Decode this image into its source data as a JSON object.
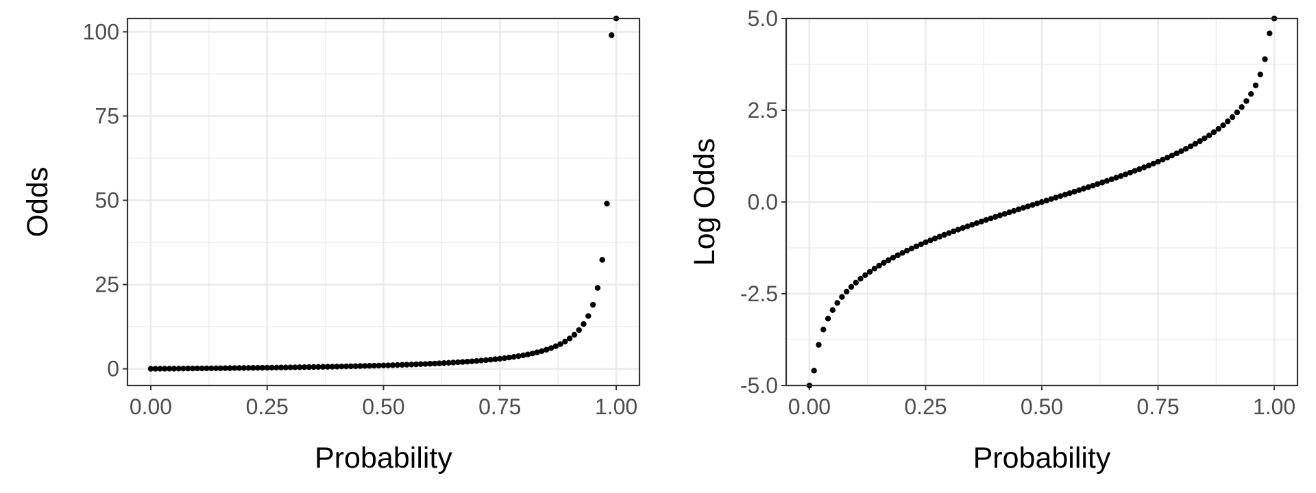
{
  "chart_data": [
    {
      "type": "scatter",
      "title": "",
      "xlabel": "Probability",
      "ylabel": "Odds",
      "xlim": [
        -0.05,
        1.05
      ],
      "ylim": [
        -4.95,
        103.95
      ],
      "xticks": [
        0,
        0.25,
        0.5,
        0.75,
        1
      ],
      "xtick_labels": [
        "0.00",
        "0.25",
        "0.50",
        "0.75",
        "1.00"
      ],
      "yticks": [
        0,
        25,
        50,
        75,
        100
      ],
      "ytick_labels": [
        "0",
        "25",
        "50",
        "75",
        "100"
      ],
      "grid": true,
      "point_color": "#000000",
      "x": [
        0,
        0.01,
        0.02,
        0.03,
        0.04,
        0.05,
        0.06,
        0.07,
        0.08,
        0.09,
        0.1,
        0.11,
        0.12,
        0.13,
        0.14,
        0.15,
        0.16,
        0.17,
        0.18,
        0.19,
        0.2,
        0.21,
        0.22,
        0.23,
        0.24,
        0.25,
        0.26,
        0.27,
        0.28,
        0.29,
        0.3,
        0.31,
        0.32,
        0.33,
        0.34,
        0.35,
        0.36,
        0.37,
        0.38,
        0.39,
        0.4,
        0.41,
        0.42,
        0.43,
        0.44,
        0.45,
        0.46,
        0.47,
        0.48,
        0.49,
        0.5,
        0.51,
        0.52,
        0.53,
        0.54,
        0.55,
        0.56,
        0.57,
        0.58,
        0.59,
        0.6,
        0.61,
        0.62,
        0.63,
        0.64,
        0.65,
        0.66,
        0.67,
        0.68,
        0.69,
        0.7,
        0.71,
        0.72,
        0.73,
        0.74,
        0.75,
        0.76,
        0.77,
        0.78,
        0.79,
        0.8,
        0.81,
        0.82,
        0.83,
        0.84,
        0.85,
        0.86,
        0.87,
        0.88,
        0.89,
        0.9,
        0.91,
        0.92,
        0.93,
        0.94,
        0.95,
        0.96,
        0.97,
        0.98,
        0.99,
        1
      ],
      "y": [
        0,
        0.0101,
        0.0204,
        0.0309,
        0.0417,
        0.0526,
        0.0638,
        0.0753,
        0.087,
        0.0989,
        0.1111,
        0.1236,
        0.1364,
        0.1494,
        0.1628,
        0.1765,
        0.1905,
        0.2048,
        0.2195,
        0.2346,
        0.25,
        0.2658,
        0.2821,
        0.2987,
        0.3158,
        0.3333,
        0.3514,
        0.3699,
        0.3889,
        0.4085,
        0.4286,
        0.4493,
        0.4706,
        0.4925,
        0.5152,
        0.5385,
        0.5625,
        0.5873,
        0.6129,
        0.6393,
        0.6667,
        0.6949,
        0.7241,
        0.7544,
        0.7857,
        0.8182,
        0.8519,
        0.8868,
        0.9231,
        0.9608,
        1,
        1.0408,
        1.0833,
        1.1277,
        1.1739,
        1.2222,
        1.2727,
        1.3256,
        1.381,
        1.439,
        1.5,
        1.5641,
        1.6316,
        1.7027,
        1.7778,
        1.8571,
        1.9412,
        2.0303,
        2.125,
        2.2258,
        2.3333,
        2.4483,
        2.5714,
        2.7037,
        2.8462,
        3,
        3.1667,
        3.3478,
        3.5455,
        3.7619,
        4,
        4.2632,
        4.5556,
        4.8824,
        5.25,
        5.6667,
        6.1429,
        6.6923,
        7.3333,
        8.0909,
        9,
        10.1111,
        11.5,
        13.2857,
        15.6667,
        19,
        24,
        32.3333,
        49,
        99,
        "Inf"
      ]
    },
    {
      "type": "scatter",
      "title": "",
      "xlabel": "Probability",
      "ylabel": "Log Odds",
      "xlim": [
        -0.05,
        1.05
      ],
      "ylim": [
        -5.0,
        5.0
      ],
      "xticks": [
        0,
        0.25,
        0.5,
        0.75,
        1
      ],
      "xtick_labels": [
        "0.00",
        "0.25",
        "0.50",
        "0.75",
        "1.00"
      ],
      "yticks": [
        -5,
        -2.5,
        0,
        2.5,
        5
      ],
      "ytick_labels": [
        "-5.0",
        "-2.5",
        "0.0",
        "2.5",
        "5.0"
      ],
      "grid": true,
      "point_color": "#000000",
      "x": [
        0,
        0.01,
        0.02,
        0.03,
        0.04,
        0.05,
        0.06,
        0.07,
        0.08,
        0.09,
        0.1,
        0.11,
        0.12,
        0.13,
        0.14,
        0.15,
        0.16,
        0.17,
        0.18,
        0.19,
        0.2,
        0.21,
        0.22,
        0.23,
        0.24,
        0.25,
        0.26,
        0.27,
        0.28,
        0.29,
        0.3,
        0.31,
        0.32,
        0.33,
        0.34,
        0.35,
        0.36,
        0.37,
        0.38,
        0.39,
        0.4,
        0.41,
        0.42,
        0.43,
        0.44,
        0.45,
        0.46,
        0.47,
        0.48,
        0.49,
        0.5,
        0.51,
        0.52,
        0.53,
        0.54,
        0.55,
        0.56,
        0.57,
        0.58,
        0.59,
        0.6,
        0.61,
        0.62,
        0.63,
        0.64,
        0.65,
        0.66,
        0.67,
        0.68,
        0.69,
        0.7,
        0.71,
        0.72,
        0.73,
        0.74,
        0.75,
        0.76,
        0.77,
        0.78,
        0.79,
        0.8,
        0.81,
        0.82,
        0.83,
        0.84,
        0.85,
        0.86,
        0.87,
        0.88,
        0.89,
        0.9,
        0.91,
        0.92,
        0.93,
        0.94,
        0.95,
        0.96,
        0.97,
        0.98,
        0.99,
        1
      ],
      "y": [
        "-Inf",
        -4.5951,
        -3.8918,
        -3.4761,
        -3.1781,
        -2.9444,
        -2.7515,
        -2.5867,
        -2.4423,
        -2.3136,
        -2.1972,
        -2.0907,
        -1.9924,
        -1.901,
        -1.8153,
        -1.7346,
        -1.6582,
        -1.5856,
        -1.5163,
        -1.45,
        -1.3863,
        -1.3249,
        -1.2657,
        -1.2083,
        -1.1527,
        -1.0986,
        -1.046,
        -0.9946,
        -0.9445,
        -0.8954,
        -0.8473,
        -0.8001,
        -0.7538,
        -0.7082,
        -0.6633,
        -0.619,
        -0.5754,
        -0.5322,
        -0.4895,
        -0.4473,
        -0.4055,
        -0.364,
        -0.3228,
        -0.2819,
        -0.2412,
        -0.2007,
        -0.1603,
        -0.1201,
        -0.08,
        -0.04,
        0,
        0.04,
        0.08,
        0.1201,
        0.1603,
        0.2007,
        0.2412,
        0.2819,
        0.3228,
        0.364,
        0.4055,
        0.4473,
        0.4895,
        0.5322,
        0.5754,
        0.619,
        0.6633,
        0.7082,
        0.7538,
        0.8001,
        0.8473,
        0.8954,
        0.9445,
        0.9946,
        1.046,
        1.0986,
        1.1527,
        1.2083,
        1.2657,
        1.3249,
        1.3863,
        1.45,
        1.5163,
        1.5856,
        1.6582,
        1.7346,
        1.8153,
        1.901,
        1.9924,
        2.0907,
        2.1972,
        2.3136,
        2.4423,
        2.5867,
        2.7515,
        2.9444,
        3.1781,
        3.4761,
        3.8918,
        4.5951,
        "Inf"
      ]
    }
  ]
}
